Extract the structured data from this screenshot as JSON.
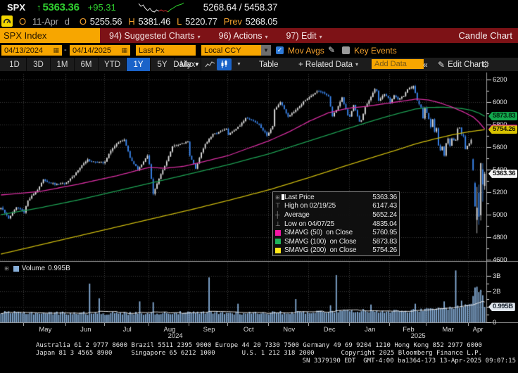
{
  "header": {
    "ticker": "SPX",
    "arrow": "↑",
    "last": "5363.36",
    "change": "+95.31",
    "range": "5268.64 / 5458.37",
    "status_letter": "O",
    "date": "11-Apr",
    "freq": "d",
    "open_label": "O",
    "open": "5255.56",
    "high_label": "H",
    "high": "5381.46",
    "low_label": "L",
    "low": "5220.77",
    "prev_label": "Prev",
    "prev": "5268.05",
    "sparkline": {
      "segments": [
        {
          "color": "#e8e8e8",
          "y": [
            3,
            7,
            5,
            10,
            13,
            10,
            14,
            15,
            12,
            14
          ]
        },
        {
          "color": "#d93030",
          "y": [
            14,
            12,
            14,
            13,
            15
          ]
        },
        {
          "color": "#2fd52f",
          "y": [
            15,
            12,
            10,
            8,
            6,
            5,
            4,
            2
          ]
        }
      ]
    }
  },
  "menubar": {
    "security": "SPX Index",
    "items": [
      "94) Suggested Charts",
      "96) Actions",
      "97) Edit"
    ],
    "right": "Candle Chart"
  },
  "toolbar": {
    "date_from": "04/13/2024",
    "date_sep": "-",
    "date_to": "04/14/2025",
    "price_field": "Last Px",
    "ccy_field": "Local CCY",
    "mov_avgs_label": "Mov Avgs",
    "key_events_label": "Key Events"
  },
  "tabbar": {
    "ranges": [
      "1D",
      "3D",
      "1M",
      "6M",
      "YTD",
      "1Y",
      "5Y",
      "Max"
    ],
    "selected": "1Y",
    "frequency": "Daily",
    "table_label": "Table",
    "related_label": "+ Related Data",
    "add_data_placeholder": "Add Data",
    "collapse_label": "«",
    "edit_chart_label": "Edit Chart"
  },
  "legend": {
    "rows": [
      {
        "type": "square",
        "swatch": "#ffffff",
        "label": "Last Price",
        "value": "5363.36"
      },
      {
        "type": "glyph",
        "glyph": "⊤",
        "label": "High on 02/19/25",
        "value": "6147.43"
      },
      {
        "type": "glyph",
        "glyph": "┼",
        "label": "Average",
        "value": "5652.24"
      },
      {
        "type": "glyph",
        "glyph": "⊥",
        "label": "Low on 04/07/25",
        "value": "4835.04"
      },
      {
        "type": "square",
        "swatch": "#f316a5",
        "label": "SMAVG (50)  on Close",
        "value": "5760.95"
      },
      {
        "type": "square",
        "swatch": "#1fb35a",
        "label": "SMAVG (100)  on Close",
        "value": "5873.83"
      },
      {
        "type": "square",
        "swatch": "#ffe81a",
        "label": "SMAVG (200)  on Close",
        "value": "5754.26"
      }
    ]
  },
  "price_axis": {
    "ticks": [
      "6200",
      "6000",
      "5800",
      "5600",
      "5400",
      "5200",
      "5000",
      "4800",
      "4600"
    ],
    "tags": [
      {
        "value": "5873.83",
        "bg": "#13a94e",
        "fg": "#00230d"
      },
      {
        "value": "5760.95",
        "bg": "#f316a5",
        "fg": "#2a0018"
      },
      {
        "value": "5754.26",
        "bg": "#d8c300",
        "fg": "#241f00"
      },
      {
        "value": "5363.36",
        "bg": "#f4f4f4",
        "fg": "#111111"
      }
    ]
  },
  "volume_axis": {
    "ticks": [
      "3B",
      "2B",
      "0"
    ],
    "tick_values": [
      3,
      2,
      0
    ],
    "tag": "0.995B"
  },
  "volume_legend": {
    "label": "Volume",
    "value": "0.995B"
  },
  "xaxis": {
    "months": [
      "May",
      "Jun",
      "Jul",
      "Aug",
      "Sep",
      "Oct",
      "Nov",
      "Dec",
      "Jan",
      "Feb",
      "Mar",
      "Apr"
    ],
    "years": [
      "2024",
      "2025"
    ]
  },
  "footer": {
    "line1": "Australia 61 2 9777 8600 Brazil 5511 2395 9000 Europe 44 20 7330 7500 Germany 49 69 9204 1210 Hong Kong 852 2977 6000",
    "line2": "Japan 81 3 4565 8900     Singapore 65 6212 1000       U.S. 1 212 318 2000       Copyright 2025 Bloomberg Finance L.P.",
    "line3": "SN 3379190 EDT  GMT-4:00 ba1364-173 13-Apr-2025 09:07:15"
  },
  "chart_data": {
    "type": "candlestick_with_volume",
    "security": "SPX Index",
    "x_range": [
      "04/13/2024",
      "04/14/2025"
    ],
    "price_axis_range": [
      4600,
      6200
    ],
    "volume_axis_range_billions": [
      0,
      3.5
    ],
    "trading_days": 252,
    "month_boundaries": [
      12,
      34,
      54,
      77,
      98,
      118,
      139,
      160,
      181,
      202,
      221,
      243
    ],
    "last_price": 5363.36,
    "high_marker": {
      "date": "02/19/25",
      "price": 6147.43,
      "day": 214
    },
    "low_marker": {
      "date": "04/07/25",
      "price": 4835.04,
      "day": 247
    },
    "average": 5652.24,
    "close_anchors": [
      [
        0,
        5061
      ],
      [
        4,
        4967
      ],
      [
        8,
        5064
      ],
      [
        11,
        5035
      ],
      [
        12,
        5018
      ],
      [
        14,
        5128
      ],
      [
        19,
        5223
      ],
      [
        22,
        5308
      ],
      [
        28,
        5268
      ],
      [
        33,
        5277
      ],
      [
        34,
        5283
      ],
      [
        38,
        5347
      ],
      [
        41,
        5421
      ],
      [
        45,
        5487
      ],
      [
        47,
        5473
      ],
      [
        53,
        5460
      ],
      [
        54,
        5475
      ],
      [
        57,
        5567
      ],
      [
        60,
        5633
      ],
      [
        64,
        5667
      ],
      [
        67,
        5505
      ],
      [
        70,
        5427
      ],
      [
        71,
        5399
      ],
      [
        76,
        5522
      ],
      [
        77,
        5446
      ],
      [
        79,
        5186
      ],
      [
        82,
        5319
      ],
      [
        85,
        5434
      ],
      [
        89,
        5608
      ],
      [
        97,
        5648
      ],
      [
        98,
        5529
      ],
      [
        101,
        5408
      ],
      [
        104,
        5554
      ],
      [
        106,
        5626
      ],
      [
        110,
        5713
      ],
      [
        115,
        5745
      ],
      [
        117,
        5762
      ],
      [
        118,
        5709
      ],
      [
        121,
        5751
      ],
      [
        124,
        5792
      ],
      [
        127,
        5860
      ],
      [
        130,
        5841
      ],
      [
        134,
        5797
      ],
      [
        138,
        5705
      ],
      [
        139,
        5729
      ],
      [
        141,
        5783
      ],
      [
        142,
        5929
      ],
      [
        145,
        6001
      ],
      [
        149,
        5871
      ],
      [
        152,
        5917
      ],
      [
        157,
        5999
      ],
      [
        159,
        6032
      ],
      [
        160,
        6047
      ],
      [
        164,
        6090
      ],
      [
        167,
        6084
      ],
      [
        170,
        6050
      ],
      [
        172,
        5872
      ],
      [
        174,
        5931
      ],
      [
        177,
        6038
      ],
      [
        180,
        5882
      ],
      [
        181,
        5869
      ],
      [
        183,
        5975
      ],
      [
        186,
        5827
      ],
      [
        187,
        5836
      ],
      [
        189,
        5950
      ],
      [
        192,
        6049
      ],
      [
        194,
        6118
      ],
      [
        195,
        6101
      ],
      [
        196,
        6012
      ],
      [
        199,
        6071
      ],
      [
        201,
        6040
      ],
      [
        202,
        5995
      ],
      [
        204,
        6060
      ],
      [
        206,
        6026
      ],
      [
        209,
        6052
      ],
      [
        211,
        6115
      ],
      [
        213,
        6130
      ],
      [
        214,
        6144
      ],
      [
        216,
        6013
      ],
      [
        218,
        5955
      ],
      [
        219,
        5861
      ],
      [
        220,
        5954
      ],
      [
        222,
        5849
      ],
      [
        223,
        5778
      ],
      [
        224,
        5842
      ],
      [
        225,
        5738
      ],
      [
        226,
        5770
      ],
      [
        227,
        5614
      ],
      [
        228,
        5572
      ],
      [
        229,
        5599
      ],
      [
        230,
        5521
      ],
      [
        231,
        5638
      ],
      [
        232,
        5675
      ],
      [
        233,
        5614
      ],
      [
        234,
        5675
      ],
      [
        235,
        5662
      ],
      [
        236,
        5667
      ],
      [
        237,
        5767
      ],
      [
        238,
        5776
      ],
      [
        239,
        5712
      ],
      [
        240,
        5693
      ],
      [
        241,
        5580
      ],
      [
        242,
        5611
      ],
      [
        243,
        5633
      ],
      [
        244,
        5670
      ],
      [
        245,
        5396
      ],
      [
        246,
        5074
      ],
      [
        247,
        5062
      ],
      [
        248,
        4982
      ],
      [
        249,
        5456
      ],
      [
        250,
        5268
      ],
      [
        251,
        5363.36
      ]
    ],
    "ohlc_overrides": {
      "214": [
        6121,
        6147.43,
        6111,
        6144
      ],
      "245": [
        5492,
        5499,
        5388,
        5396
      ],
      "246": [
        5280,
        5292,
        5069,
        5074
      ],
      "247": [
        4953,
        5246,
        4835.04,
        5062
      ],
      "248": [
        5193,
        5267,
        4910,
        4982
      ],
      "249": [
        4995,
        5462,
        4948,
        5456
      ],
      "250": [
        5402,
        5456,
        5115,
        5268
      ],
      "251": [
        5255.56,
        5381.46,
        5220.77,
        5363.36
      ]
    },
    "smavg50": [
      [
        0,
        5175
      ],
      [
        20,
        5205
      ],
      [
        40,
        5270
      ],
      [
        60,
        5345
      ],
      [
        77,
        5420
      ],
      [
        85,
        5412
      ],
      [
        95,
        5430
      ],
      [
        105,
        5470
      ],
      [
        118,
        5525
      ],
      [
        130,
        5600
      ],
      [
        139,
        5655
      ],
      [
        150,
        5740
      ],
      [
        160,
        5830
      ],
      [
        170,
        5905
      ],
      [
        180,
        5945
      ],
      [
        190,
        5962
      ],
      [
        200,
        5988
      ],
      [
        210,
        6012
      ],
      [
        216,
        6028
      ],
      [
        222,
        6018
      ],
      [
        228,
        5992
      ],
      [
        234,
        5955
      ],
      [
        240,
        5912
      ],
      [
        245,
        5868
      ],
      [
        248,
        5822
      ],
      [
        251,
        5760.95
      ]
    ],
    "smavg100": [
      [
        0,
        5000
      ],
      [
        20,
        5060
      ],
      [
        40,
        5130
      ],
      [
        60,
        5210
      ],
      [
        80,
        5290
      ],
      [
        100,
        5370
      ],
      [
        120,
        5452
      ],
      [
        140,
        5545
      ],
      [
        160,
        5655
      ],
      [
        180,
        5765
      ],
      [
        195,
        5845
      ],
      [
        205,
        5893
      ],
      [
        215,
        5938
      ],
      [
        222,
        5952
      ],
      [
        230,
        5954
      ],
      [
        238,
        5945
      ],
      [
        244,
        5928
      ],
      [
        248,
        5903
      ],
      [
        251,
        5873.83
      ]
    ],
    "smavg200": [
      [
        0,
        4650
      ],
      [
        20,
        4730
      ],
      [
        40,
        4810
      ],
      [
        60,
        4890
      ],
      [
        80,
        4970
      ],
      [
        100,
        5050
      ],
      [
        120,
        5135
      ],
      [
        140,
        5225
      ],
      [
        160,
        5330
      ],
      [
        180,
        5440
      ],
      [
        195,
        5520
      ],
      [
        205,
        5572
      ],
      [
        215,
        5628
      ],
      [
        225,
        5672
      ],
      [
        235,
        5712
      ],
      [
        243,
        5736
      ],
      [
        248,
        5748
      ],
      [
        251,
        5754.26
      ]
    ],
    "volume_base_anchors": [
      [
        0,
        0.62
      ],
      [
        30,
        0.6
      ],
      [
        60,
        0.58
      ],
      [
        90,
        0.62
      ],
      [
        120,
        0.6
      ],
      [
        150,
        0.63
      ],
      [
        170,
        0.7
      ],
      [
        181,
        0.76
      ],
      [
        200,
        0.72
      ],
      [
        215,
        0.76
      ],
      [
        225,
        0.86
      ],
      [
        235,
        0.95
      ],
      [
        243,
        1.15
      ],
      [
        247,
        1.6
      ],
      [
        251,
        1.25
      ]
    ],
    "volume_spikes": {
      "46": 2.5,
      "51": 1.55,
      "72": 1.35,
      "79": 1.3,
      "108": 2.9,
      "123": 1.2,
      "153": 1.5,
      "171": 1.1,
      "174": 3.05,
      "192": 1.15,
      "215": 1.2,
      "230": 1.35,
      "236": 3.35,
      "239": 1.4,
      "245": 1.7,
      "246": 2.25,
      "247": 2.3,
      "248": 1.95,
      "249": 2.1,
      "250": 1.75,
      "251": 0.995
    },
    "colors": {
      "up_candle": "#e2e2e2",
      "down_candle": "#3b87f0",
      "smavg50": "#d62ea0",
      "smavg100": "#1d9e52",
      "smavg200": "#c9b70e",
      "volume_bar": "#86aed8",
      "volume_avg_line": "#ececec",
      "grid": "#3d3d3d"
    }
  }
}
